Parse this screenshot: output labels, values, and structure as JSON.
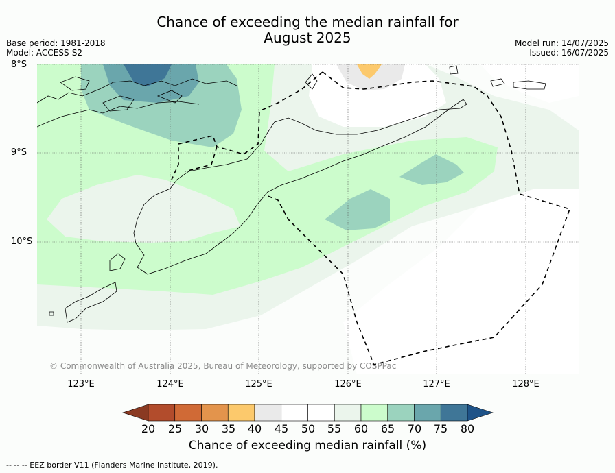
{
  "title": {
    "line1": "Chance of exceeding the median rainfall for",
    "line2": "August 2025"
  },
  "meta": {
    "base_period": "Base period: 1981-2018",
    "model": "Model: ACCESS-S2",
    "model_run": "Model run: 14/07/2025",
    "issued": "Issued: 16/07/2025"
  },
  "axes": {
    "lat_labels": [
      "8°S",
      "9°S",
      "10°S"
    ],
    "lon_labels": [
      "123°E",
      "124°E",
      "125°E",
      "126°E",
      "127°E",
      "128°E"
    ]
  },
  "colorbar": {
    "ticks": [
      "20",
      "25",
      "30",
      "35",
      "40",
      "45",
      "50",
      "55",
      "60",
      "65",
      "70",
      "75",
      "80"
    ],
    "colors": [
      "#8a3a22",
      "#b24c2c",
      "#d06a36",
      "#e3944c",
      "#fcc96c",
      "#eaeaea",
      "#ffffff",
      "#ffffff",
      "#ebf5ec",
      "#ccfccc",
      "#9bd3be",
      "#6aa6ac",
      "#3f7697",
      "#1e5388"
    ],
    "label": "Chance of exceeding median rainfall (%)"
  },
  "copyright": "© Commonwealth of Australia 2025, Bureau of Meteorology, supported by COSPPac",
  "footer": "--  --  -- EEZ border V11 (Flanders Marine Institute, 2019)."
}
